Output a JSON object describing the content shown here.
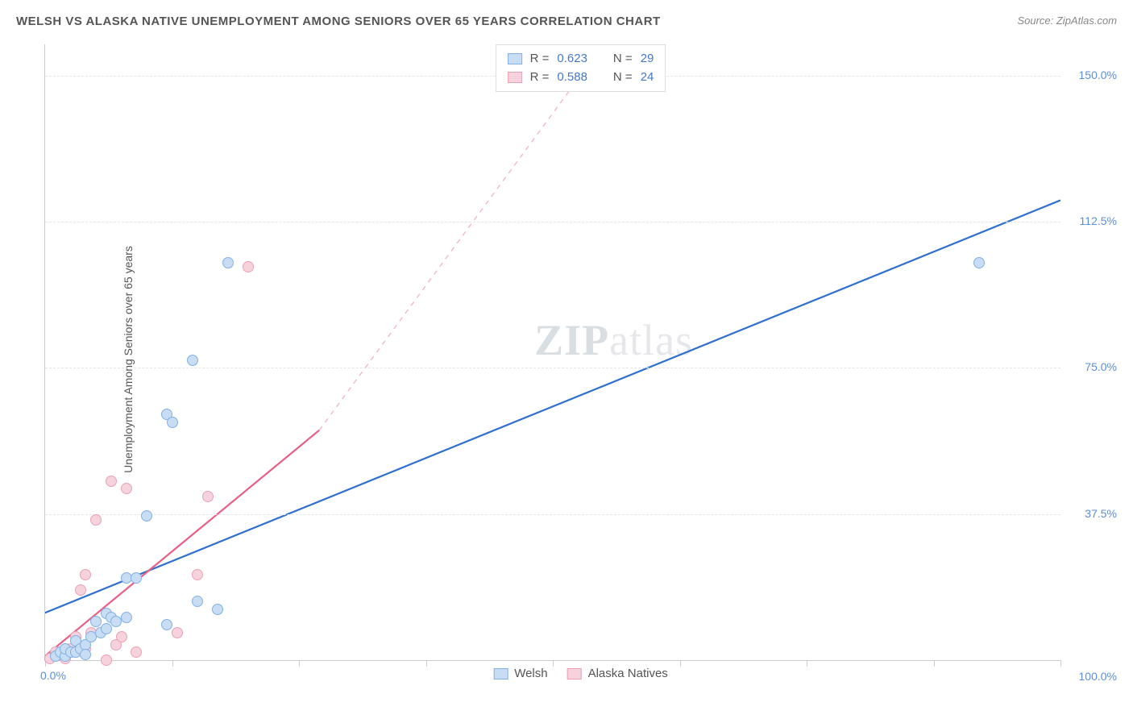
{
  "title": "WELSH VS ALASKA NATIVE UNEMPLOYMENT AMONG SENIORS OVER 65 YEARS CORRELATION CHART",
  "source_label": "Source: ZipAtlas.com",
  "ylabel": "Unemployment Among Seniors over 65 years",
  "watermark": {
    "zip": "ZIP",
    "atlas": "atlas"
  },
  "chart": {
    "type": "scatter",
    "background_color": "#ffffff",
    "grid_color": "#e5e5e5",
    "axis_color": "#cccccc",
    "tick_label_color": "#5b8fd6",
    "xlim": [
      0,
      100
    ],
    "ylim": [
      0,
      158
    ],
    "xticks": [
      0,
      12.5,
      25,
      37.5,
      50,
      62.5,
      75,
      87.5,
      100
    ],
    "yticks": [
      37.5,
      75,
      112.5,
      150
    ],
    "ytick_labels": [
      "37.5%",
      "75.0%",
      "112.5%",
      "150.0%"
    ],
    "x_origin_label": "0.0%",
    "x_max_label": "100.0%",
    "marker_radius": 7,
    "marker_stroke_width": 1.2
  },
  "series": {
    "welsh": {
      "label": "Welsh",
      "fill": "#c8ddf4",
      "stroke": "#7fb0e6",
      "line_color": "#2f6fd0",
      "line_width": 2.2,
      "R": "0.623",
      "N": "29",
      "trend": {
        "x1": -3,
        "y1": 9,
        "x2": 100,
        "y2": 118
      },
      "points": [
        [
          1,
          1
        ],
        [
          1.5,
          2
        ],
        [
          2,
          1
        ],
        [
          2,
          3
        ],
        [
          2.5,
          2
        ],
        [
          3,
          2
        ],
        [
          3,
          5
        ],
        [
          3.5,
          3
        ],
        [
          4,
          4
        ],
        [
          4,
          1.5
        ],
        [
          4.5,
          6
        ],
        [
          5,
          10
        ],
        [
          5.5,
          7
        ],
        [
          6,
          8
        ],
        [
          6,
          12
        ],
        [
          6.5,
          11
        ],
        [
          7,
          10
        ],
        [
          8,
          11
        ],
        [
          8,
          21
        ],
        [
          9,
          21
        ],
        [
          10,
          37
        ],
        [
          12,
          9
        ],
        [
          12,
          63
        ],
        [
          12.5,
          61
        ],
        [
          14.5,
          77
        ],
        [
          15,
          15
        ],
        [
          17,
          13
        ],
        [
          18,
          102
        ],
        [
          92,
          102
        ]
      ]
    },
    "alaska": {
      "label": "Alaska Natives",
      "fill": "#f6d2dc",
      "stroke": "#eaa0b5",
      "line_color": "#e95f86",
      "line_width": 2.2,
      "dash_color": "#f2b8c7",
      "R": "0.588",
      "N": "24",
      "trend_solid": {
        "x1": -0.5,
        "y1": 0,
        "x2": 27,
        "y2": 59
      },
      "trend_dash": {
        "x1": 27,
        "y1": 59,
        "x2": 55,
        "y2": 158
      },
      "points": [
        [
          0.5,
          0.5
        ],
        [
          1,
          1
        ],
        [
          1,
          2
        ],
        [
          1.5,
          1.5
        ],
        [
          2,
          2
        ],
        [
          2,
          0.5
        ],
        [
          2.5,
          3
        ],
        [
          3,
          2
        ],
        [
          3,
          6
        ],
        [
          3.5,
          18
        ],
        [
          4,
          3
        ],
        [
          4,
          22
        ],
        [
          4.5,
          7
        ],
        [
          5,
          36
        ],
        [
          6,
          0
        ],
        [
          6.5,
          46
        ],
        [
          7,
          4
        ],
        [
          7.5,
          6
        ],
        [
          8,
          44
        ],
        [
          9,
          2
        ],
        [
          13,
          7
        ],
        [
          15,
          22
        ],
        [
          16,
          42
        ],
        [
          20,
          101
        ]
      ]
    }
  },
  "legend_top": {
    "r_label": "R =",
    "n_label": "N ="
  },
  "legend_bottom": {
    "items": [
      {
        "key": "welsh"
      },
      {
        "key": "alaska"
      }
    ]
  }
}
